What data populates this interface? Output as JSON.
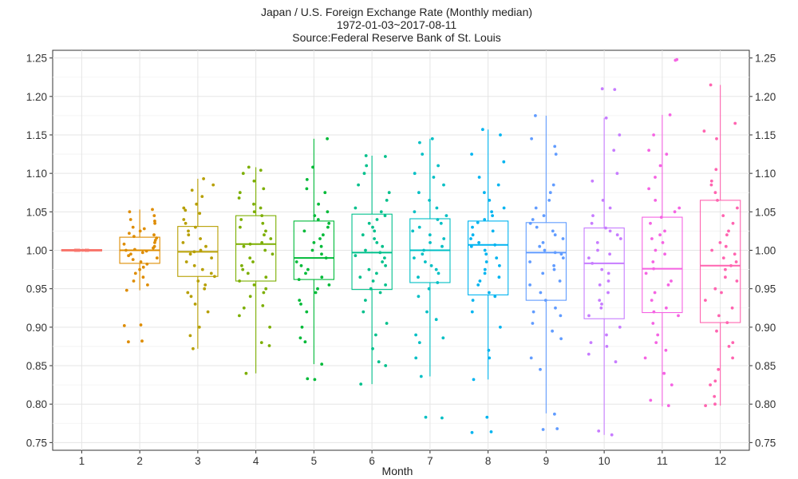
{
  "chart_data": {
    "type": "box",
    "title": "Japan / U.S. Foreign Exchange Rate (Monthly median)",
    "subtitle": "1972-01-03~2017-08-11",
    "source": "Source:Federal Reserve Bank of St. Louis",
    "xlabel": "Month",
    "ylabel": "",
    "categories": [
      "1",
      "2",
      "3",
      "4",
      "5",
      "6",
      "7",
      "8",
      "9",
      "10",
      "11",
      "12"
    ],
    "ylim": [
      0.74,
      1.26
    ],
    "yticks": [
      "0.75",
      "0.80",
      "0.85",
      "0.90",
      "0.95",
      "1.00",
      "1.05",
      "1.10",
      "1.15",
      "1.20",
      "1.25"
    ],
    "grid": true,
    "secondary_y_axis": true,
    "colors": [
      "#F8766D",
      "#DE8C00",
      "#B79F00",
      "#7CAE00",
      "#00BA38",
      "#00C08B",
      "#00BFC4",
      "#00B4F0",
      "#619CFF",
      "#C77CFF",
      "#F564E3",
      "#FF64B0"
    ],
    "boxes": [
      {
        "month": "1",
        "q1": 0.999,
        "median": 1.0,
        "q3": 1.001,
        "whisker_low": 0.999,
        "whisker_high": 1.001
      },
      {
        "month": "2",
        "q1": 0.983,
        "median": 1.0,
        "q3": 1.017,
        "whisker_low": 0.948,
        "whisker_high": 1.053
      },
      {
        "month": "3",
        "q1": 0.966,
        "median": 0.998,
        "q3": 1.031,
        "whisker_low": 0.872,
        "whisker_high": 1.093
      },
      {
        "month": "4",
        "q1": 0.96,
        "median": 1.008,
        "q3": 1.045,
        "whisker_low": 0.84,
        "whisker_high": 1.108
      },
      {
        "month": "5",
        "q1": 0.962,
        "median": 0.99,
        "q3": 1.038,
        "whisker_low": 0.852,
        "whisker_high": 1.145
      },
      {
        "month": "6",
        "q1": 0.949,
        "median": 0.997,
        "q3": 1.047,
        "whisker_low": 0.826,
        "whisker_high": 1.123
      },
      {
        "month": "7",
        "q1": 0.958,
        "median": 1.0,
        "q3": 1.041,
        "whisker_low": 0.836,
        "whisker_high": 1.145
      },
      {
        "month": "8",
        "q1": 0.942,
        "median": 1.007,
        "q3": 1.038,
        "whisker_low": 0.832,
        "whisker_high": 1.157
      },
      {
        "month": "9",
        "q1": 0.935,
        "median": 0.997,
        "q3": 1.036,
        "whisker_low": 0.788,
        "whisker_high": 1.175
      },
      {
        "month": "10",
        "q1": 0.911,
        "median": 0.983,
        "q3": 1.029,
        "whisker_low": 0.76,
        "whisker_high": 1.172
      },
      {
        "month": "11",
        "q1": 0.919,
        "median": 0.976,
        "q3": 1.043,
        "whisker_low": 0.797,
        "whisker_high": 1.176
      },
      {
        "month": "12",
        "q1": 0.906,
        "median": 0.98,
        "q3": 1.065,
        "whisker_low": 0.798,
        "whisker_high": 1.215
      }
    ],
    "points": [
      {
        "month": "1",
        "values": [
          1.0,
          1.0,
          1.0,
          1.0,
          1.0,
          1.0,
          1.0,
          1.0,
          1.0,
          1.0,
          1.0,
          1.0,
          1.0,
          1.0,
          1.0,
          1.0,
          1.0,
          1.0,
          1.0,
          1.0
        ]
      },
      {
        "month": "2",
        "values": [
          1.053,
          1.05,
          1.045,
          1.04,
          1.038,
          1.035,
          1.03,
          1.028,
          1.025,
          1.022,
          1.02,
          1.018,
          1.016,
          1.013,
          1.01,
          1.008,
          1.005,
          1.003,
          1.001,
          1.0,
          0.999,
          0.997,
          0.995,
          0.993,
          0.99,
          0.988,
          0.985,
          0.982,
          0.978,
          0.975,
          0.97,
          0.965,
          0.96,
          0.955,
          0.948,
          0.903,
          0.902,
          0.882,
          0.881
        ]
      },
      {
        "month": "3",
        "values": [
          1.093,
          1.085,
          1.078,
          1.07,
          1.06,
          1.055,
          1.052,
          1.048,
          1.04,
          1.035,
          1.03,
          1.025,
          1.02,
          1.015,
          1.01,
          1.005,
          1.0,
          0.998,
          0.995,
          0.99,
          0.985,
          0.98,
          0.975,
          0.97,
          0.966,
          0.96,
          0.955,
          0.95,
          0.945,
          0.94,
          0.93,
          0.92,
          0.9,
          0.889,
          0.872
        ]
      },
      {
        "month": "4",
        "values": [
          1.108,
          1.104,
          1.1,
          1.09,
          1.08,
          1.075,
          1.068,
          1.06,
          1.055,
          1.05,
          1.045,
          1.04,
          1.035,
          1.03,
          1.025,
          1.02,
          1.015,
          1.01,
          1.008,
          1.005,
          1.0,
          0.995,
          0.99,
          0.985,
          0.98,
          0.975,
          0.97,
          0.965,
          0.96,
          0.955,
          0.95,
          0.945,
          0.94,
          0.928,
          0.925,
          0.915,
          0.9,
          0.88,
          0.876,
          0.84
        ]
      },
      {
        "month": "5",
        "values": [
          1.145,
          1.108,
          1.092,
          1.08,
          1.075,
          1.06,
          1.05,
          1.045,
          1.04,
          1.035,
          1.03,
          1.025,
          1.02,
          1.015,
          1.01,
          1.005,
          1.0,
          0.995,
          0.99,
          0.985,
          0.98,
          0.975,
          0.97,
          0.965,
          0.962,
          0.955,
          0.95,
          0.945,
          0.935,
          0.93,
          0.92,
          0.9,
          0.886,
          0.881,
          0.852,
          0.833,
          0.832
        ]
      },
      {
        "month": "6",
        "values": [
          1.123,
          1.122,
          1.11,
          1.1,
          1.085,
          1.075,
          1.065,
          1.055,
          1.05,
          1.045,
          1.04,
          1.035,
          1.03,
          1.025,
          1.02,
          1.015,
          1.01,
          1.005,
          1.0,
          0.997,
          0.993,
          0.99,
          0.985,
          0.98,
          0.975,
          0.97,
          0.965,
          0.96,
          0.955,
          0.95,
          0.945,
          0.935,
          0.92,
          0.905,
          0.89,
          0.872,
          0.855,
          0.85,
          0.826
        ]
      },
      {
        "month": "7",
        "values": [
          1.145,
          1.14,
          1.125,
          1.11,
          1.1,
          1.095,
          1.085,
          1.075,
          1.065,
          1.055,
          1.05,
          1.045,
          1.04,
          1.035,
          1.03,
          1.025,
          1.02,
          1.015,
          1.01,
          1.005,
          1.0,
          0.995,
          0.99,
          0.985,
          0.98,
          0.975,
          0.97,
          0.965,
          0.958,
          0.95,
          0.94,
          0.92,
          0.91,
          0.89,
          0.886,
          0.88,
          0.86,
          0.836,
          0.783,
          0.782
        ]
      },
      {
        "month": "8",
        "values": [
          1.157,
          1.15,
          1.125,
          1.115,
          1.095,
          1.085,
          1.075,
          1.065,
          1.055,
          1.05,
          1.045,
          1.04,
          1.036,
          1.03,
          1.025,
          1.02,
          1.015,
          1.01,
          1.007,
          1.005,
          1.0,
          0.995,
          0.99,
          0.985,
          0.98,
          0.975,
          0.97,
          0.965,
          0.96,
          0.955,
          0.945,
          0.94,
          0.935,
          0.92,
          0.9,
          0.87,
          0.86,
          0.832,
          0.783,
          0.764,
          0.763
        ]
      },
      {
        "month": "9",
        "values": [
          1.175,
          1.145,
          1.135,
          1.125,
          1.085,
          1.075,
          1.065,
          1.055,
          1.045,
          1.04,
          1.035,
          1.03,
          1.025,
          1.02,
          1.015,
          1.01,
          1.005,
          1.0,
          0.997,
          0.995,
          0.99,
          0.985,
          0.98,
          0.975,
          0.97,
          0.96,
          0.955,
          0.945,
          0.935,
          0.925,
          0.92,
          0.915,
          0.905,
          0.895,
          0.885,
          0.86,
          0.845,
          0.787,
          0.768,
          0.767
        ]
      },
      {
        "month": "10",
        "values": [
          1.21,
          1.209,
          1.172,
          1.15,
          1.13,
          1.1,
          1.09,
          1.065,
          1.055,
          1.045,
          1.035,
          1.029,
          1.025,
          1.02,
          1.015,
          1.01,
          1.0,
          0.995,
          0.99,
          0.983,
          0.975,
          0.97,
          0.96,
          0.955,
          0.945,
          0.935,
          0.93,
          0.925,
          0.915,
          0.9,
          0.89,
          0.88,
          0.875,
          0.865,
          0.855,
          0.765,
          0.76
        ]
      },
      {
        "month": "11",
        "values": [
          1.248,
          1.247,
          1.176,
          1.15,
          1.13,
          1.125,
          1.11,
          1.095,
          1.08,
          1.065,
          1.055,
          1.05,
          1.043,
          1.035,
          1.025,
          1.02,
          1.015,
          1.01,
          1.0,
          0.995,
          0.985,
          0.976,
          0.97,
          0.96,
          0.955,
          0.945,
          0.935,
          0.925,
          0.92,
          0.915,
          0.905,
          0.89,
          0.88,
          0.87,
          0.86,
          0.84,
          0.825,
          0.805,
          0.798
        ]
      },
      {
        "month": "12",
        "values": [
          1.215,
          1.165,
          1.155,
          1.145,
          1.105,
          1.09,
          1.085,
          1.075,
          1.065,
          1.055,
          1.045,
          1.035,
          1.025,
          1.02,
          1.01,
          1.005,
          1.0,
          0.995,
          0.99,
          0.985,
          0.98,
          0.975,
          0.965,
          0.96,
          0.95,
          0.945,
          0.935,
          0.925,
          0.915,
          0.906,
          0.895,
          0.88,
          0.875,
          0.86,
          0.845,
          0.83,
          0.825,
          0.81,
          0.8,
          0.798
        ]
      }
    ]
  }
}
